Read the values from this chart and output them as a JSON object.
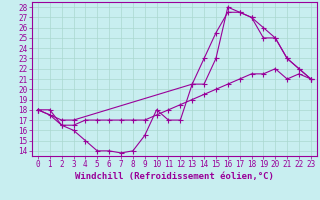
{
  "xlabel": "Windchill (Refroidissement éolien,°C)",
  "xlim": [
    -0.5,
    23.5
  ],
  "ylim": [
    13.5,
    28.5
  ],
  "xticks": [
    0,
    1,
    2,
    3,
    4,
    5,
    6,
    7,
    8,
    9,
    10,
    11,
    12,
    13,
    14,
    15,
    16,
    17,
    18,
    19,
    20,
    21,
    22,
    23
  ],
  "yticks": [
    14,
    15,
    16,
    17,
    18,
    19,
    20,
    21,
    22,
    23,
    24,
    25,
    26,
    27,
    28
  ],
  "bg_color": "#c8eef0",
  "line_color": "#990099",
  "grid_color": "#aad8d0",
  "line1_x": [
    0,
    1,
    2,
    3,
    4,
    5,
    6,
    7,
    8,
    9,
    10,
    11,
    12,
    13,
    14,
    15,
    16,
    17,
    18,
    19,
    20,
    21,
    22,
    23
  ],
  "line1_y": [
    18,
    18,
    16.5,
    16,
    15,
    14,
    14,
    13.8,
    14,
    15.5,
    18,
    17,
    17,
    20.5,
    20.5,
    23,
    28,
    27.5,
    27,
    25,
    25,
    23,
    22,
    21
  ],
  "line2_x": [
    0,
    1,
    2,
    3,
    4,
    5,
    6,
    7,
    8,
    9,
    10,
    11,
    12,
    13,
    14,
    15,
    16,
    17,
    18,
    19,
    20,
    21,
    22,
    23
  ],
  "line2_y": [
    18,
    17.5,
    16.5,
    16.5,
    17,
    17,
    17,
    17,
    17,
    17,
    17.5,
    18,
    18.5,
    19,
    19.5,
    20,
    20.5,
    21,
    21.5,
    21.5,
    22,
    21,
    21.5,
    21
  ],
  "line3_x": [
    0,
    2,
    3,
    13,
    14,
    15,
    16,
    17,
    18,
    19,
    20,
    21,
    22,
    23
  ],
  "line3_y": [
    18,
    17,
    17,
    20.5,
    23,
    25.5,
    27.5,
    27.5,
    27,
    26,
    25,
    23,
    22,
    21
  ],
  "tick_fontsize": 5.5,
  "label_fontsize": 6.5
}
